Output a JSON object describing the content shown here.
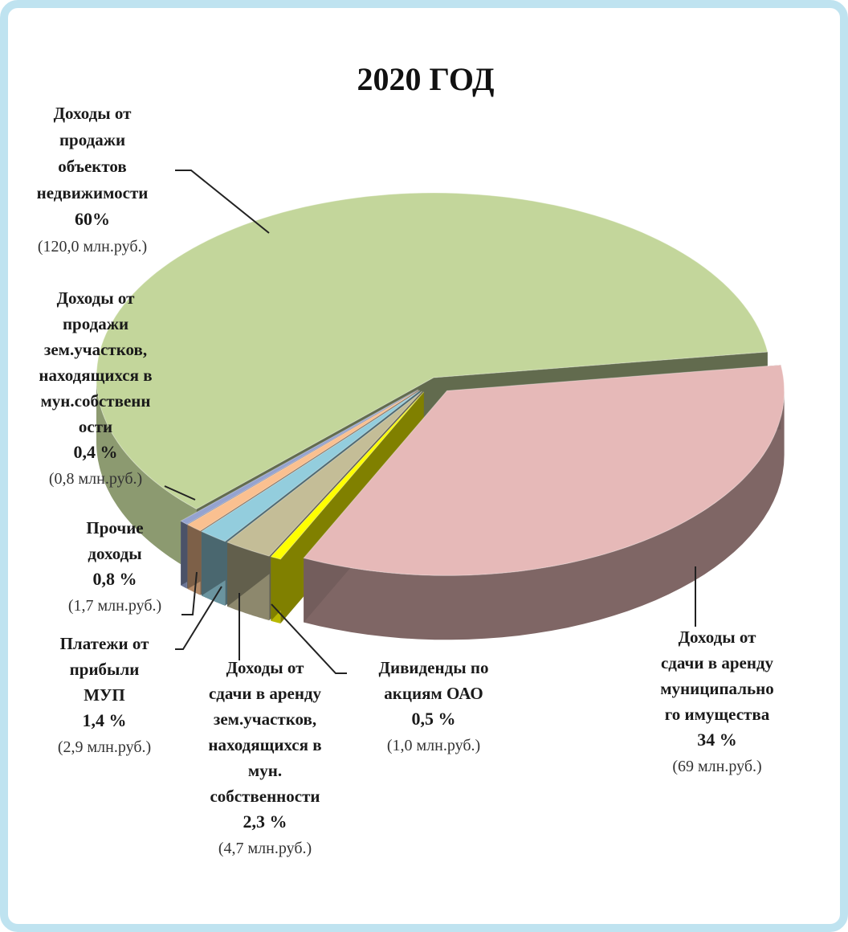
{
  "chart_data": {
    "type": "pie",
    "title": "2020 ГОД",
    "three_d": true,
    "exploded": true,
    "slices": [
      {
        "label_lines": [
          "Доходы от",
          "продажи",
          "объектов",
          "недвижимости"
        ],
        "percent_label": "60%",
        "amount_label": "(120,0 млн.руб.)",
        "value": 60,
        "color": "#c3d69b"
      },
      {
        "label_lines": [
          "Доходы от",
          "сдачи в аренду",
          "муниципально",
          "го имущества"
        ],
        "percent_label": "34 %",
        "amount_label": "(69 млн.руб.)",
        "value": 34,
        "color": "#e6b9b8"
      },
      {
        "label_lines": [
          "Дивиденды по",
          "акциям ОАО"
        ],
        "percent_label": "0,5 %",
        "amount_label": "(1,0 млн.руб.)",
        "value": 0.5,
        "color": "#ffff00"
      },
      {
        "label_lines": [
          "Доходы от",
          "сдачи в аренду",
          "зем.участков,",
          "находящихся в",
          "мун.",
          "собственности"
        ],
        "percent_label": "2,3 %",
        "amount_label": "(4,7 млн.руб.)",
        "value": 2.3,
        "color": "#c4bd97"
      },
      {
        "label_lines": [
          "Платежи от",
          "прибыли",
          "МУП"
        ],
        "percent_label": "1,4 %",
        "amount_label": "(2,9 млн.руб.)",
        "value": 1.4,
        "color": "#93cddd"
      },
      {
        "label_lines": [
          "Прочие",
          "доходы"
        ],
        "percent_label": "0,8 %",
        "amount_label": "(1,7 млн.руб.)",
        "value": 0.8,
        "color": "#fac090"
      },
      {
        "label_lines": [
          "Доходы от",
          "продажи",
          "зем.участков,",
          "находящихся в",
          "мун.собственн",
          "ости"
        ],
        "percent_label": "0,4 %",
        "amount_label": "(0,8 млн.руб.)",
        "value": 0.4,
        "color": "#95a3d0"
      }
    ]
  }
}
